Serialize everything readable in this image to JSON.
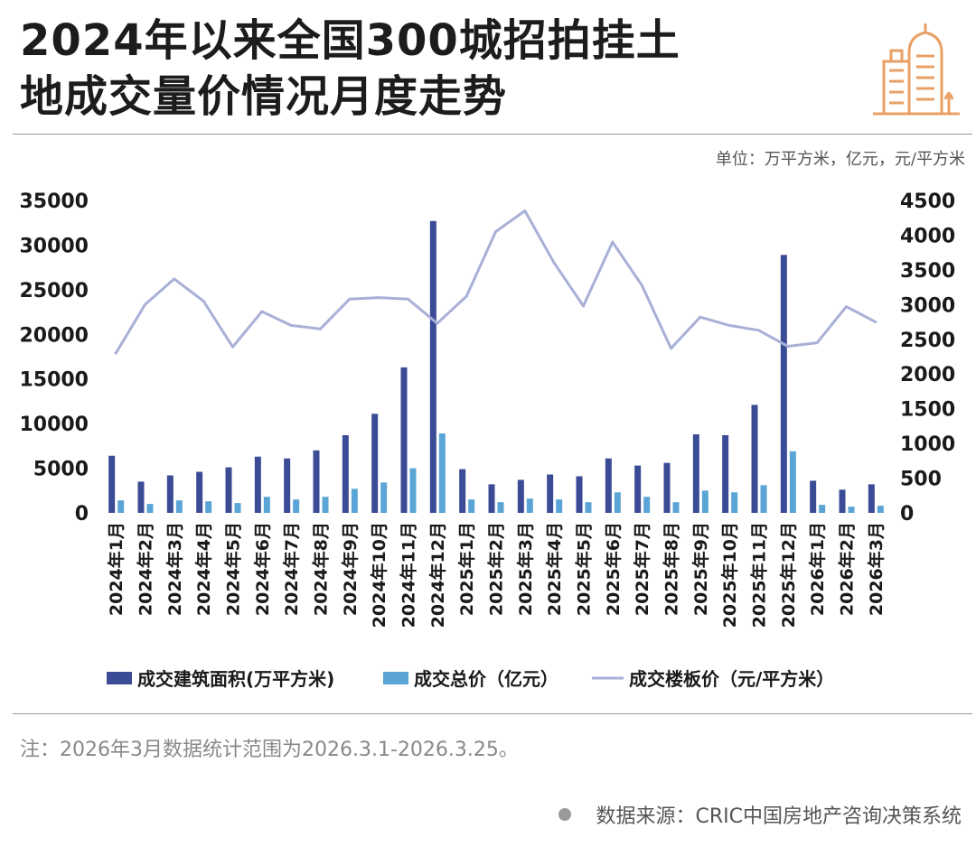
{
  "title": {
    "line1": "2024年以来全国300城招拍挂土",
    "line2": "地成交量价情况月度走势"
  },
  "unit_text": "单位：万平方米，亿元，元/平方米",
  "note": "注：2026年3月数据统计范围为2026.3.1-2026.3.25。",
  "source": "数据来源：CRIC中国房地产咨询决策系统",
  "icons": {
    "header": "building-icon",
    "source": "dot-icon"
  },
  "colors": {
    "area": "#3b4b95",
    "price": "#5aa5d6",
    "line": "#a9b0d8",
    "icon": "#e8a066"
  },
  "chart_data": {
    "type": "bar",
    "title": "2024年以来全国300城招拍挂土地成交量价情况月度走势",
    "categories": [
      "2024年1月",
      "2024年2月",
      "2024年3月",
      "2024年4月",
      "2024年5月",
      "2024年6月",
      "2024年7月",
      "2024年8月",
      "2024年9月",
      "2024年10月",
      "2024年11月",
      "2024年12月",
      "2025年1月",
      "2025年2月",
      "2025年3月",
      "2025年4月",
      "2025年5月",
      "2025年6月",
      "2025年7月",
      "2025年8月",
      "2025年9月",
      "2025年10月",
      "2025年11月",
      "2025年12月",
      "2026年1月",
      "2026年2月",
      "2026年3月"
    ],
    "y_left": {
      "ylim": [
        0,
        35000
      ],
      "ticks": [
        "0",
        "5000",
        "10000",
        "15000",
        "20000",
        "25000",
        "30000",
        "35000"
      ]
    },
    "y_right": {
      "ylim": [
        0,
        4500
      ],
      "ticks": [
        "0",
        "500",
        "1000",
        "1500",
        "2000",
        "2500",
        "3000",
        "3500",
        "4000",
        "4500"
      ]
    },
    "series": [
      {
        "name": "成交建筑面积(万平方米)",
        "type": "bar",
        "axis": "left",
        "values": [
          6400,
          3500,
          4200,
          4600,
          5100,
          6300,
          6100,
          7000,
          8700,
          11100,
          16300,
          32700,
          4900,
          3200,
          3700,
          4300,
          4100,
          6100,
          5300,
          5600,
          8800,
          8700,
          12100,
          28900,
          3600,
          2600,
          3200
        ]
      },
      {
        "name": "成交总价（亿元）",
        "type": "bar",
        "axis": "left",
        "values": [
          1400,
          1000,
          1400,
          1300,
          1100,
          1800,
          1500,
          1800,
          2700,
          3400,
          5000,
          8900,
          1500,
          1200,
          1600,
          1500,
          1200,
          2300,
          1800,
          1200,
          2500,
          2300,
          3100,
          6900,
          900,
          700,
          800
        ]
      },
      {
        "name": "成交楼板价（元/平方米）",
        "type": "line",
        "axis": "right",
        "values": [
          2300,
          3000,
          3370,
          3050,
          2390,
          2900,
          2700,
          2650,
          3080,
          3100,
          3080,
          2730,
          3120,
          4050,
          4350,
          3600,
          2980,
          3900,
          3280,
          2370,
          2820,
          2700,
          2630,
          2400,
          2450,
          2970,
          2750
        ]
      }
    ]
  }
}
